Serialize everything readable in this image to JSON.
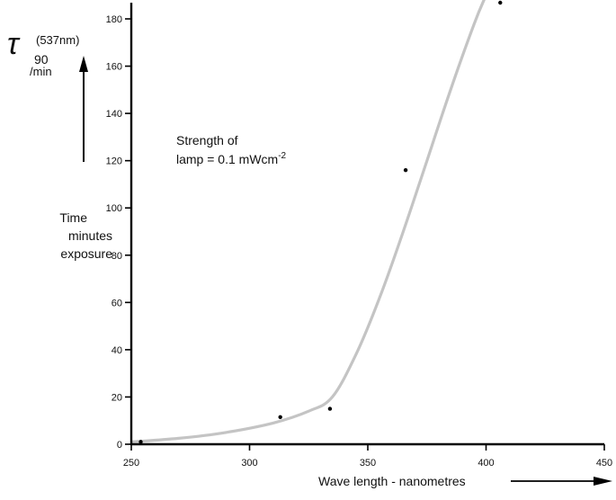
{
  "chart_data": {
    "type": "scatter",
    "title": "",
    "xlabel": "Wave length - nanometres",
    "ylabel": {
      "lines": [
        "Time",
        "minutes",
        "exposure"
      ]
    },
    "y_symbol": {
      "tau": "τ",
      "subscript": "90",
      "superscript": "(537nm)",
      "unit": "/min"
    },
    "annotation": {
      "line1": "Strength of",
      "line2_prefix": "lamp = 0.1 mWcm",
      "line2_sup": "-2"
    },
    "xlim": [
      250,
      450
    ],
    "ylim": [
      0,
      185
    ],
    "x_ticks": [
      250,
      300,
      350,
      400,
      450
    ],
    "y_ticks": [
      0,
      20,
      40,
      60,
      80,
      100,
      120,
      140,
      160,
      180
    ],
    "grid": false,
    "points": [
      {
        "x": 254,
        "y": 1
      },
      {
        "x": 313,
        "y": 11.5
      },
      {
        "x": 334,
        "y": 15
      },
      {
        "x": 366,
        "y": 116
      },
      {
        "x": 406,
        "y": 187
      }
    ],
    "curve": {
      "color": "#c4c4c4",
      "x": [
        250,
        270,
        290,
        310,
        325,
        335,
        345,
        355,
        365,
        375,
        385,
        395,
        400
      ],
      "y": [
        1,
        2.5,
        5,
        9,
        14,
        20,
        38,
        62,
        90,
        120,
        150,
        178,
        190
      ]
    }
  }
}
